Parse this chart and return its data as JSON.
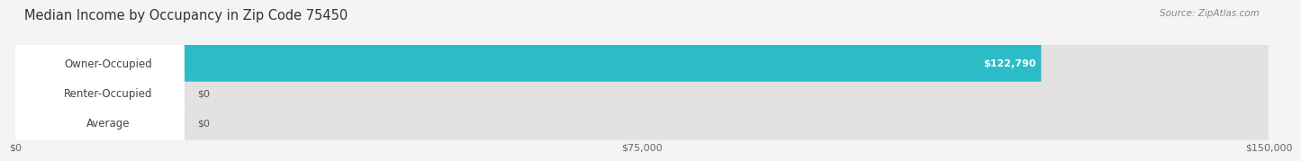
{
  "title": "Median Income by Occupancy in Zip Code 75450",
  "source": "Source: ZipAtlas.com",
  "categories": [
    "Owner-Occupied",
    "Renter-Occupied",
    "Average"
  ],
  "values": [
    122790,
    0,
    0
  ],
  "bar_colors": [
    "#2bbcc8",
    "#b89ccc",
    "#f5c9a0"
  ],
  "value_labels": [
    "$122,790",
    "$0",
    "$0"
  ],
  "xlim": [
    0,
    150000
  ],
  "xticks": [
    0,
    75000,
    150000
  ],
  "xticklabels": [
    "$0",
    "$75,000",
    "$150,000"
  ],
  "background_color": "#f4f4f4",
  "bar_bg_color": "#e2e2e2",
  "bar_row_bg": "#ebebeb",
  "title_fontsize": 10.5,
  "source_fontsize": 7.5,
  "label_fontsize": 8.5,
  "value_fontsize": 8
}
